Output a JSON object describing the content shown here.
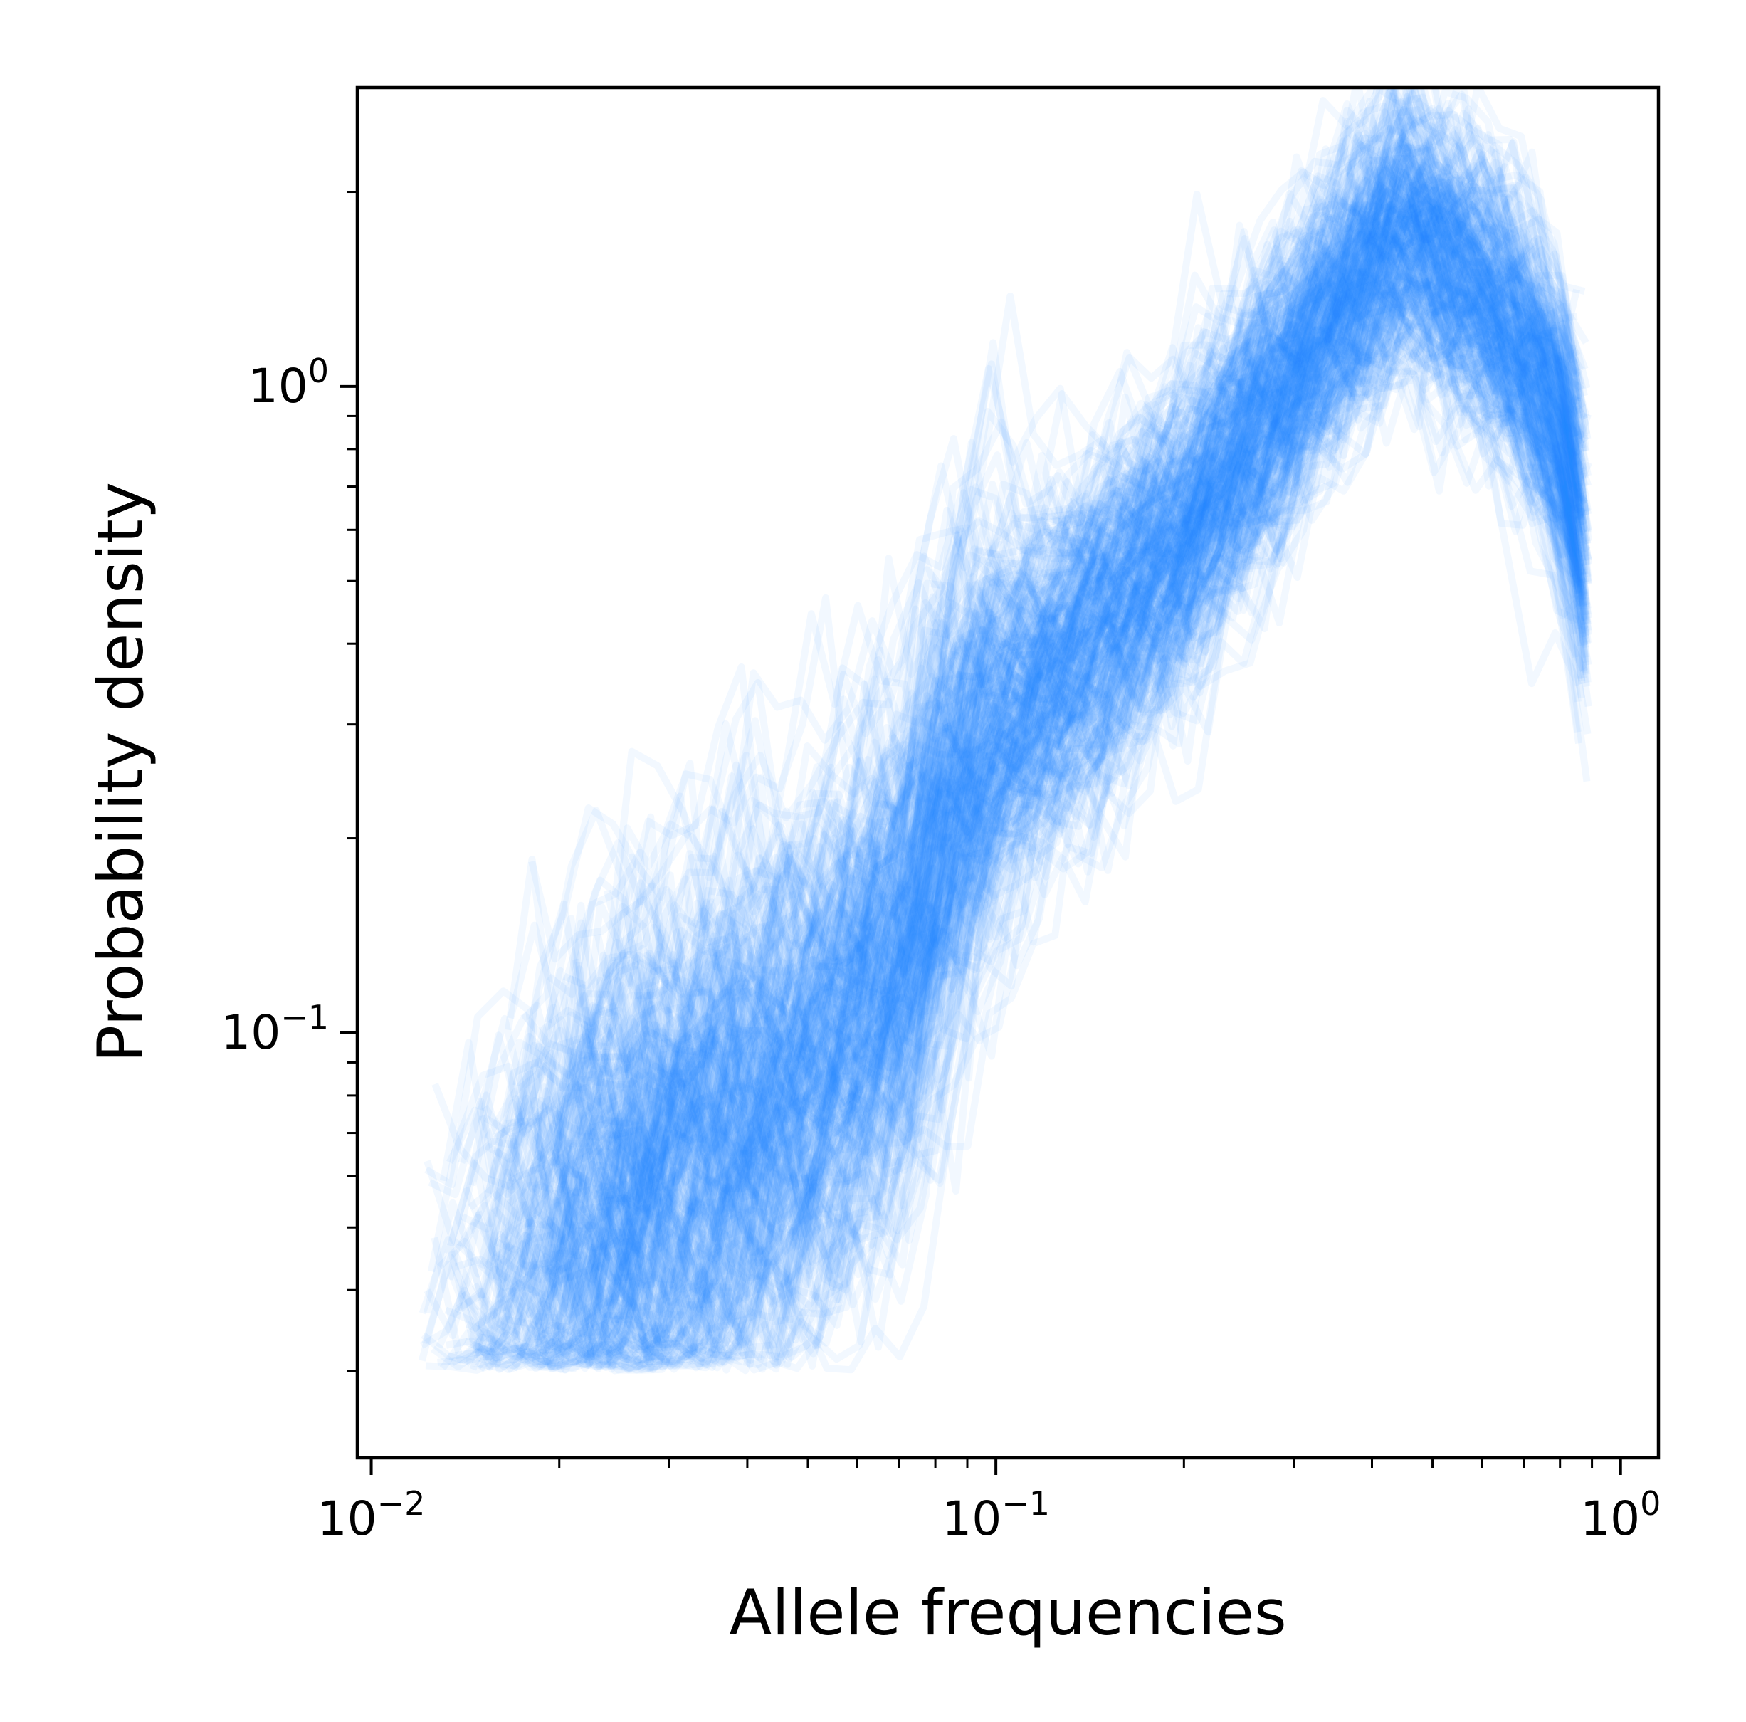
{
  "chart_data": {
    "type": "line",
    "xlabel": "Allele frequencies",
    "ylabel": "Probability density",
    "x_scale": "log",
    "y_scale": "log",
    "xlim": [
      0.0095,
      1.15
    ],
    "ylim": [
      0.022,
      2.9
    ],
    "x_major_ticks": [
      {
        "value": 0.01,
        "base": "10",
        "exp": "−2"
      },
      {
        "value": 0.1,
        "base": "10",
        "exp": "−1"
      },
      {
        "value": 1,
        "base": "10",
        "exp": "0"
      }
    ],
    "y_major_ticks": [
      {
        "value": 0.1,
        "base": "10",
        "exp": "−1"
      },
      {
        "value": 1,
        "base": "10",
        "exp": "0"
      }
    ],
    "grid": false,
    "legend": "none",
    "color": "#1E90FF",
    "line_alpha": 0.06,
    "series_count": 300,
    "envelope": {
      "x": [
        0.012,
        0.015,
        0.02,
        0.03,
        0.05,
        0.07,
        0.085,
        0.1,
        0.13,
        0.2,
        0.3,
        0.4,
        0.45,
        0.6,
        0.75,
        0.85,
        0.88
      ],
      "center": [
        0.036,
        0.042,
        0.05,
        0.06,
        0.085,
        0.13,
        0.22,
        0.3,
        0.38,
        0.58,
        1.05,
        1.55,
        1.75,
        1.4,
        1.0,
        0.7,
        0.5
      ],
      "spread_log10": [
        0.12,
        0.2,
        0.26,
        0.28,
        0.28,
        0.26,
        0.24,
        0.2,
        0.18,
        0.14,
        0.11,
        0.1,
        0.1,
        0.1,
        0.11,
        0.14,
        0.18
      ]
    }
  }
}
